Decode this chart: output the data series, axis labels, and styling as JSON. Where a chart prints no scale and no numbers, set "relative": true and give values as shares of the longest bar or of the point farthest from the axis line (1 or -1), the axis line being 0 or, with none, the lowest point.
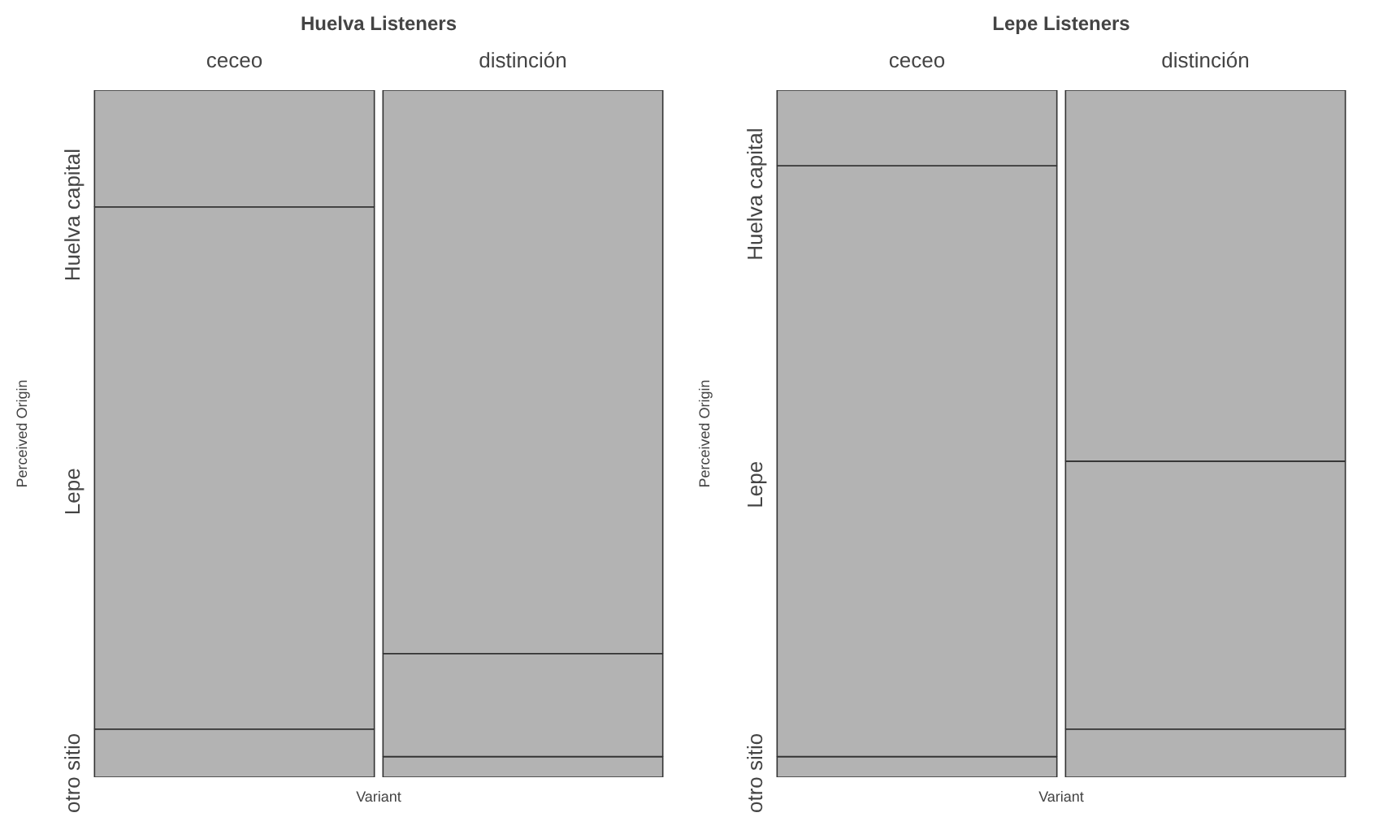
{
  "chart_data": [
    {
      "type": "bar",
      "title": "Huelva Listeners",
      "xlabel": "Variant",
      "ylabel": "Perceived Origin",
      "categories": [
        "ceceo",
        "distinción"
      ],
      "stacked": true,
      "relative": true,
      "series": [
        {
          "name": "otro sitio",
          "color": "#b3b3b3",
          "values": [
            0.07,
            0.03
          ]
        },
        {
          "name": "Lepe",
          "color": "#b3b3b3",
          "values": [
            0.76,
            0.15
          ]
        },
        {
          "name": "Huelva capital",
          "color": "#b3b3b3",
          "values": [
            0.17,
            0.82
          ]
        }
      ]
    },
    {
      "type": "bar",
      "title": "Lepe Listeners",
      "xlabel": "Variant",
      "ylabel": "Perceived Origin",
      "categories": [
        "ceceo",
        "distinción"
      ],
      "stacked": true,
      "relative": true,
      "series": [
        {
          "name": "otro sitio",
          "color": "#b3b3b3",
          "values": [
            0.03,
            0.07
          ]
        },
        {
          "name": "Lepe",
          "color": "#b3b3b3",
          "values": [
            0.86,
            0.39
          ]
        },
        {
          "name": "Huelva capital",
          "color": "#b3b3b3",
          "values": [
            0.11,
            0.54
          ]
        }
      ]
    }
  ]
}
